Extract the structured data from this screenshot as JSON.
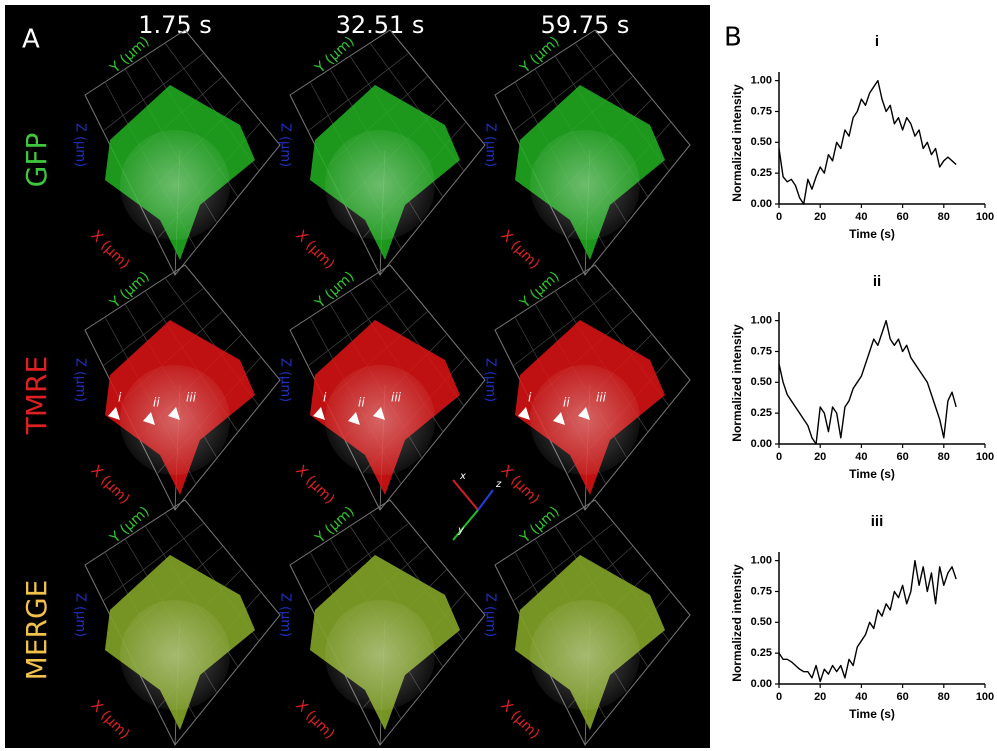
{
  "panel_a": {
    "label": "A",
    "times": [
      "1.75 s",
      "32.51 s",
      "59.75 s"
    ],
    "rows": [
      {
        "label": "GFP",
        "color": "#3ec83e",
        "fill": "#22b322"
      },
      {
        "label": "TMRE",
        "color": "#e02020",
        "fill": "#e01414"
      },
      {
        "label": "MERGE",
        "color": "#f2c14a",
        "fill": "#d0a020"
      }
    ],
    "axis_labels": {
      "y": "Y (µm)",
      "z": "Z (µm)",
      "x": "X (µm)"
    },
    "arrow_labels": [
      "i",
      "ii",
      "iii"
    ],
    "triad": {
      "x": "x",
      "y": "y",
      "z": "z"
    }
  },
  "panel_b": {
    "label": "B"
  },
  "chart_data": [
    {
      "type": "line",
      "title": "i",
      "xlabel": "Time (s)",
      "ylabel": "Normalized intensity",
      "color": "#000000",
      "x": [
        0,
        2,
        4,
        6,
        8,
        10,
        12,
        14,
        16,
        18,
        20,
        22,
        24,
        26,
        28,
        30,
        32,
        34,
        36,
        38,
        40,
        42,
        44,
        46,
        48,
        50,
        52,
        54,
        56,
        58,
        60,
        62,
        64,
        66,
        68,
        70,
        72,
        74,
        76,
        78,
        80,
        82,
        84,
        86
      ],
      "values": [
        0.45,
        0.22,
        0.18,
        0.2,
        0.15,
        0.05,
        0.0,
        0.2,
        0.12,
        0.22,
        0.3,
        0.25,
        0.4,
        0.35,
        0.5,
        0.45,
        0.6,
        0.55,
        0.7,
        0.75,
        0.85,
        0.8,
        0.9,
        0.95,
        1.0,
        0.85,
        0.75,
        0.8,
        0.65,
        0.7,
        0.6,
        0.7,
        0.65,
        0.55,
        0.6,
        0.45,
        0.5,
        0.4,
        0.45,
        0.3,
        0.35,
        0.38,
        0.35,
        0.32
      ],
      "xlim": [
        0,
        100
      ],
      "xticks": [
        0,
        20,
        40,
        60,
        80,
        100
      ],
      "ylim": [
        0,
        1.07
      ],
      "yticks": [
        {
          "value": 0,
          "label": "0.00"
        },
        {
          "value": 0.25,
          "label": "0.25"
        },
        {
          "value": 0.5,
          "label": "0.50"
        },
        {
          "value": 0.75,
          "label": "0.75"
        },
        {
          "value": 1,
          "label": "1.00"
        }
      ]
    },
    {
      "type": "line",
      "title": "ii",
      "xlabel": "Time (s)",
      "ylabel": "Normalized intensity",
      "color": "#000000",
      "x": [
        0,
        2,
        4,
        6,
        8,
        10,
        12,
        14,
        16,
        18,
        20,
        22,
        24,
        26,
        28,
        30,
        32,
        34,
        36,
        38,
        40,
        42,
        44,
        46,
        48,
        50,
        52,
        54,
        56,
        58,
        60,
        62,
        64,
        66,
        68,
        70,
        72,
        74,
        76,
        78,
        80,
        82,
        84,
        86
      ],
      "values": [
        0.65,
        0.5,
        0.4,
        0.35,
        0.3,
        0.25,
        0.2,
        0.15,
        0.05,
        0.0,
        0.3,
        0.25,
        0.1,
        0.3,
        0.25,
        0.05,
        0.3,
        0.35,
        0.45,
        0.5,
        0.55,
        0.65,
        0.75,
        0.85,
        0.8,
        0.9,
        1.0,
        0.85,
        0.8,
        0.85,
        0.75,
        0.8,
        0.7,
        0.65,
        0.6,
        0.55,
        0.5,
        0.4,
        0.3,
        0.2,
        0.05,
        0.35,
        0.42,
        0.3
      ],
      "xlim": [
        0,
        100
      ],
      "xticks": [
        0,
        20,
        40,
        60,
        80,
        100
      ],
      "ylim": [
        0,
        1.07
      ],
      "yticks": [
        {
          "value": 0,
          "label": "0.00"
        },
        {
          "value": 0.25,
          "label": "0.25"
        },
        {
          "value": 0.5,
          "label": "0.50"
        },
        {
          "value": 0.75,
          "label": "0.75"
        },
        {
          "value": 1,
          "label": "1.00"
        }
      ]
    },
    {
      "type": "line",
      "title": "iii",
      "xlabel": "Time (s)",
      "ylabel": "Normalized intensity",
      "color": "#000000",
      "x": [
        0,
        2,
        4,
        6,
        8,
        10,
        12,
        14,
        16,
        18,
        20,
        22,
        24,
        26,
        28,
        30,
        32,
        34,
        36,
        38,
        40,
        42,
        44,
        46,
        48,
        50,
        52,
        54,
        56,
        58,
        60,
        62,
        64,
        66,
        68,
        70,
        72,
        74,
        76,
        78,
        80,
        82,
        84,
        86
      ],
      "values": [
        0.25,
        0.2,
        0.2,
        0.18,
        0.15,
        0.12,
        0.1,
        0.1,
        0.05,
        0.15,
        0.02,
        0.12,
        0.08,
        0.15,
        0.1,
        0.15,
        0.05,
        0.2,
        0.15,
        0.3,
        0.35,
        0.4,
        0.5,
        0.45,
        0.6,
        0.55,
        0.65,
        0.6,
        0.75,
        0.7,
        0.8,
        0.65,
        0.75,
        1.0,
        0.8,
        0.95,
        0.75,
        0.9,
        0.65,
        0.95,
        0.8,
        0.9,
        0.95,
        0.85
      ],
      "xlim": [
        0,
        100
      ],
      "xticks": [
        0,
        20,
        40,
        60,
        80,
        100
      ],
      "ylim": [
        0,
        1.07
      ],
      "yticks": [
        {
          "value": 0,
          "label": "0.00"
        },
        {
          "value": 0.25,
          "label": "0.25"
        },
        {
          "value": 0.5,
          "label": "0.50"
        },
        {
          "value": 0.75,
          "label": "0.75"
        },
        {
          "value": 1,
          "label": "1.00"
        }
      ]
    }
  ]
}
